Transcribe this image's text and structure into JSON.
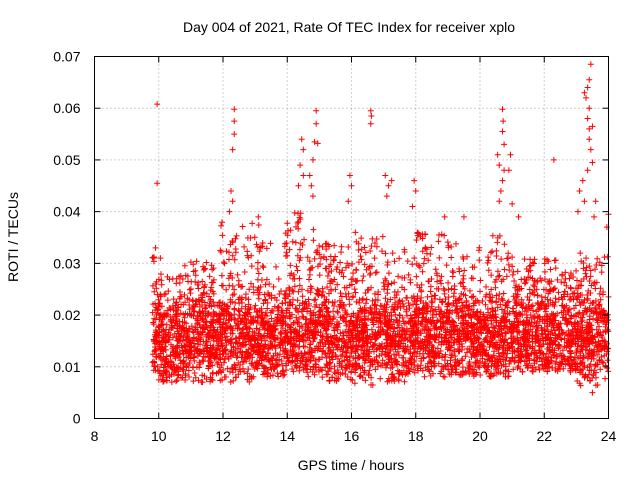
{
  "chart_data": {
    "type": "scatter",
    "title": "Day 004 of 2021, Rate Of TEC Index for receiver xplo",
    "xlabel": "GPS time / hours",
    "ylabel": "ROTI / TECUs",
    "xlim": [
      8,
      24
    ],
    "ylim": [
      0,
      0.07
    ],
    "x_ticks": [
      8,
      10,
      12,
      14,
      16,
      18,
      20,
      22,
      24
    ],
    "x_tick_labels": [
      "8",
      "10",
      "12",
      "14",
      "16",
      "18",
      "20",
      "22",
      "24"
    ],
    "y_ticks": [
      0,
      0.01,
      0.02,
      0.03,
      0.04,
      0.05,
      0.06,
      0.07
    ],
    "y_tick_labels": [
      "0",
      "0.01",
      "0.02",
      "0.03",
      "0.04",
      "0.05",
      "0.06",
      "0.07"
    ],
    "grid": true,
    "marker": "plus",
    "series": [
      {
        "name": "ROTI",
        "color": "#ff0000",
        "bands": [
          {
            "x0": 9.8,
            "x1": 10.0,
            "lo": 0.009,
            "hi": 0.032
          },
          {
            "x0": 10.0,
            "x1": 10.8,
            "lo": 0.007,
            "hi": 0.028
          },
          {
            "x0": 10.8,
            "x1": 11.8,
            "lo": 0.007,
            "hi": 0.031
          },
          {
            "x0": 11.8,
            "x1": 12.4,
            "lo": 0.007,
            "hi": 0.038
          },
          {
            "x0": 12.4,
            "x1": 13.2,
            "lo": 0.007,
            "hi": 0.038
          },
          {
            "x0": 13.2,
            "x1": 14.0,
            "lo": 0.008,
            "hi": 0.036
          },
          {
            "x0": 14.0,
            "x1": 14.6,
            "lo": 0.009,
            "hi": 0.04
          },
          {
            "x0": 14.6,
            "x1": 15.2,
            "lo": 0.008,
            "hi": 0.037
          },
          {
            "x0": 15.2,
            "x1": 16.0,
            "lo": 0.007,
            "hi": 0.034
          },
          {
            "x0": 16.0,
            "x1": 17.0,
            "lo": 0.006,
            "hi": 0.036
          },
          {
            "x0": 17.0,
            "x1": 18.0,
            "lo": 0.007,
            "hi": 0.033
          },
          {
            "x0": 18.0,
            "x1": 19.0,
            "lo": 0.008,
            "hi": 0.036
          },
          {
            "x0": 19.0,
            "x1": 20.0,
            "lo": 0.008,
            "hi": 0.034
          },
          {
            "x0": 20.0,
            "x1": 21.0,
            "lo": 0.008,
            "hi": 0.036
          },
          {
            "x0": 21.0,
            "x1": 22.0,
            "lo": 0.009,
            "hi": 0.031
          },
          {
            "x0": 22.0,
            "x1": 23.0,
            "lo": 0.009,
            "hi": 0.031
          },
          {
            "x0": 23.0,
            "x1": 24.0,
            "lo": 0.006,
            "hi": 0.032
          }
        ],
        "points": [
          [
            9.95,
            0.0608
          ],
          [
            9.95,
            0.0455
          ],
          [
            9.9,
            0.033
          ],
          [
            10.05,
            0.031
          ],
          [
            12.35,
            0.0598
          ],
          [
            12.35,
            0.0575
          ],
          [
            12.35,
            0.055
          ],
          [
            12.3,
            0.052
          ],
          [
            12.25,
            0.044
          ],
          [
            12.3,
            0.042
          ],
          [
            12.2,
            0.04
          ],
          [
            13.1,
            0.039
          ],
          [
            14.45,
            0.054
          ],
          [
            14.5,
            0.052
          ],
          [
            14.4,
            0.049
          ],
          [
            14.5,
            0.047
          ],
          [
            14.35,
            0.045
          ],
          [
            14.9,
            0.0595
          ],
          [
            14.9,
            0.057
          ],
          [
            14.85,
            0.0535
          ],
          [
            14.95,
            0.0532
          ],
          [
            14.8,
            0.05
          ],
          [
            14.7,
            0.047
          ],
          [
            14.75,
            0.045
          ],
          [
            14.8,
            0.043
          ],
          [
            15.95,
            0.047
          ],
          [
            16.0,
            0.045
          ],
          [
            15.9,
            0.042
          ],
          [
            16.6,
            0.0595
          ],
          [
            16.62,
            0.0585
          ],
          [
            16.6,
            0.057
          ],
          [
            17.05,
            0.047
          ],
          [
            17.15,
            0.045
          ],
          [
            17.25,
            0.046
          ],
          [
            17.1,
            0.043
          ],
          [
            17.95,
            0.046
          ],
          [
            18.0,
            0.044
          ],
          [
            17.9,
            0.041
          ],
          [
            18.9,
            0.039
          ],
          [
            19.5,
            0.039
          ],
          [
            20.55,
            0.051
          ],
          [
            20.7,
            0.0598
          ],
          [
            20.72,
            0.0575
          ],
          [
            20.7,
            0.0555
          ],
          [
            20.75,
            0.053
          ],
          [
            20.6,
            0.049
          ],
          [
            20.75,
            0.048
          ],
          [
            20.7,
            0.046
          ],
          [
            20.65,
            0.044
          ],
          [
            20.6,
            0.042
          ],
          [
            20.95,
            0.051
          ],
          [
            20.9,
            0.048
          ],
          [
            21.0,
            0.0415
          ],
          [
            21.2,
            0.039
          ],
          [
            22.3,
            0.05
          ],
          [
            23.45,
            0.0685
          ],
          [
            23.35,
            0.064
          ],
          [
            23.4,
            0.0655
          ],
          [
            23.3,
            0.062
          ],
          [
            23.25,
            0.063
          ],
          [
            23.4,
            0.06
          ],
          [
            23.35,
            0.058
          ],
          [
            23.4,
            0.056
          ],
          [
            23.5,
            0.0565
          ],
          [
            23.4,
            0.054
          ],
          [
            23.45,
            0.052
          ],
          [
            23.5,
            0.0495
          ],
          [
            23.35,
            0.048
          ],
          [
            23.2,
            0.046
          ],
          [
            23.1,
            0.044
          ],
          [
            23.25,
            0.042
          ],
          [
            23.05,
            0.04
          ],
          [
            23.6,
            0.042
          ],
          [
            23.55,
            0.039
          ],
          [
            24.0,
            0.0395
          ],
          [
            23.95,
            0.037
          ],
          [
            23.5,
            0.005
          ]
        ]
      }
    ]
  }
}
